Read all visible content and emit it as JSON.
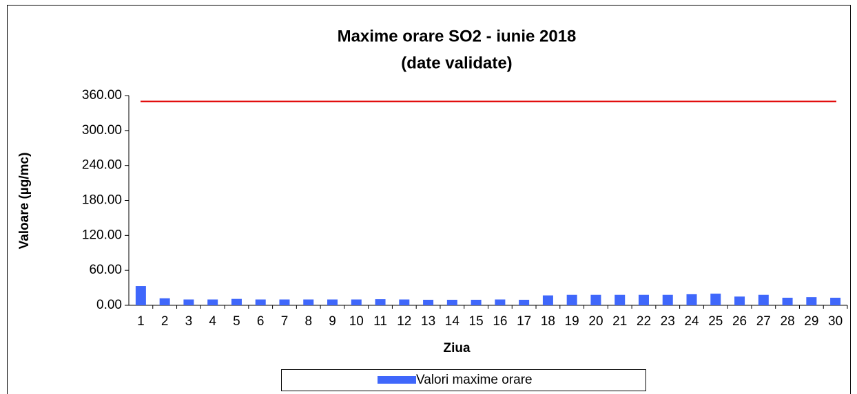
{
  "chart_data": {
    "type": "bar",
    "title": [
      "Maxime orare SO2 -  iunie 2018",
      "(date validate)"
    ],
    "x_label": "Ziua",
    "y_label": "Valoare (µg/mc)",
    "categories": [
      "1",
      "2",
      "3",
      "4",
      "5",
      "6",
      "7",
      "8",
      "9",
      "10",
      "11",
      "12",
      "13",
      "14",
      "15",
      "16",
      "17",
      "18",
      "19",
      "20",
      "21",
      "22",
      "23",
      "24",
      "25",
      "26",
      "27",
      "28",
      "29",
      "30"
    ],
    "series": [
      {
        "name": "Valori maxime orare",
        "color": "#3f67fb",
        "values": [
          33,
          12,
          10,
          10,
          11,
          10,
          10,
          10,
          10,
          10,
          10.5,
          10,
          9.5,
          9.5,
          9.5,
          10,
          9.5,
          17,
          18,
          18,
          18,
          18,
          18,
          19,
          20,
          15,
          18,
          13,
          14,
          13
        ]
      }
    ],
    "threshold": {
      "value": 350,
      "color": "#e00000"
    },
    "ylim": [
      0,
      360
    ],
    "yticks": [
      {
        "value": 0,
        "label": "0.00"
      },
      {
        "value": 60,
        "label": "60.00"
      },
      {
        "value": 120,
        "label": "120.00"
      },
      {
        "value": 180,
        "label": "180.00"
      },
      {
        "value": 240,
        "label": "240.00"
      },
      {
        "value": 300,
        "label": "300.00"
      },
      {
        "value": 360,
        "label": "360.00"
      }
    ],
    "grid": false
  }
}
